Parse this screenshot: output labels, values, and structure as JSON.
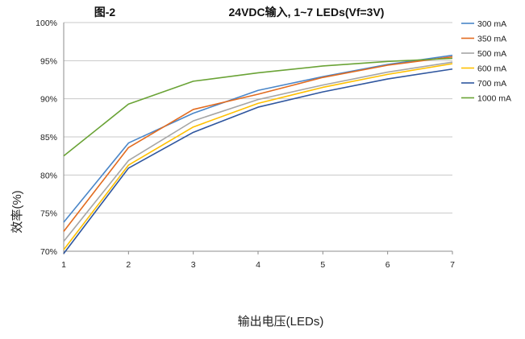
{
  "chart_data": {
    "type": "line",
    "fig_label": "图-2",
    "title": "24VDC输入, 1~7 LEDs(Vf=3V)",
    "xlabel": "输出电压(LEDs)",
    "ylabel": "效率(%)",
    "x": [
      1,
      2,
      3,
      4,
      5,
      6,
      7
    ],
    "x_tick_labels": [
      "1",
      "2",
      "3",
      "4",
      "5",
      "6",
      "7"
    ],
    "xlim": [
      1,
      7
    ],
    "ylim": [
      70,
      100
    ],
    "y_ticks": [
      70,
      75,
      80,
      85,
      90,
      95,
      100
    ],
    "y_tick_labels": [
      "70%",
      "75%",
      "80%",
      "85%",
      "90%",
      "95%",
      "100%"
    ],
    "grid": true,
    "legend_position": "right",
    "series": [
      {
        "name": "300 mA",
        "color": "#4a86c8",
        "values": [
          73.8,
          84.2,
          88.1,
          91.1,
          92.9,
          94.5,
          95.7
        ]
      },
      {
        "name": "350 mA",
        "color": "#e26b1f",
        "values": [
          72.6,
          83.6,
          88.6,
          90.6,
          92.8,
          94.4,
          95.5
        ]
      },
      {
        "name": "500 mA",
        "color": "#a5a5a5",
        "values": [
          71.3,
          81.9,
          87.1,
          89.9,
          91.8,
          93.5,
          94.8
        ]
      },
      {
        "name": "600 mA",
        "color": "#ffc000",
        "values": [
          70.2,
          81.3,
          86.3,
          89.4,
          91.5,
          93.2,
          94.6
        ]
      },
      {
        "name": "700 mA",
        "color": "#2f569e",
        "values": [
          69.7,
          80.9,
          85.6,
          88.9,
          90.9,
          92.6,
          93.9
        ]
      },
      {
        "name": "1000 mA",
        "color": "#6aa336",
        "values": [
          82.5,
          89.3,
          92.3,
          93.4,
          94.3,
          94.9,
          95.3
        ]
      }
    ]
  }
}
